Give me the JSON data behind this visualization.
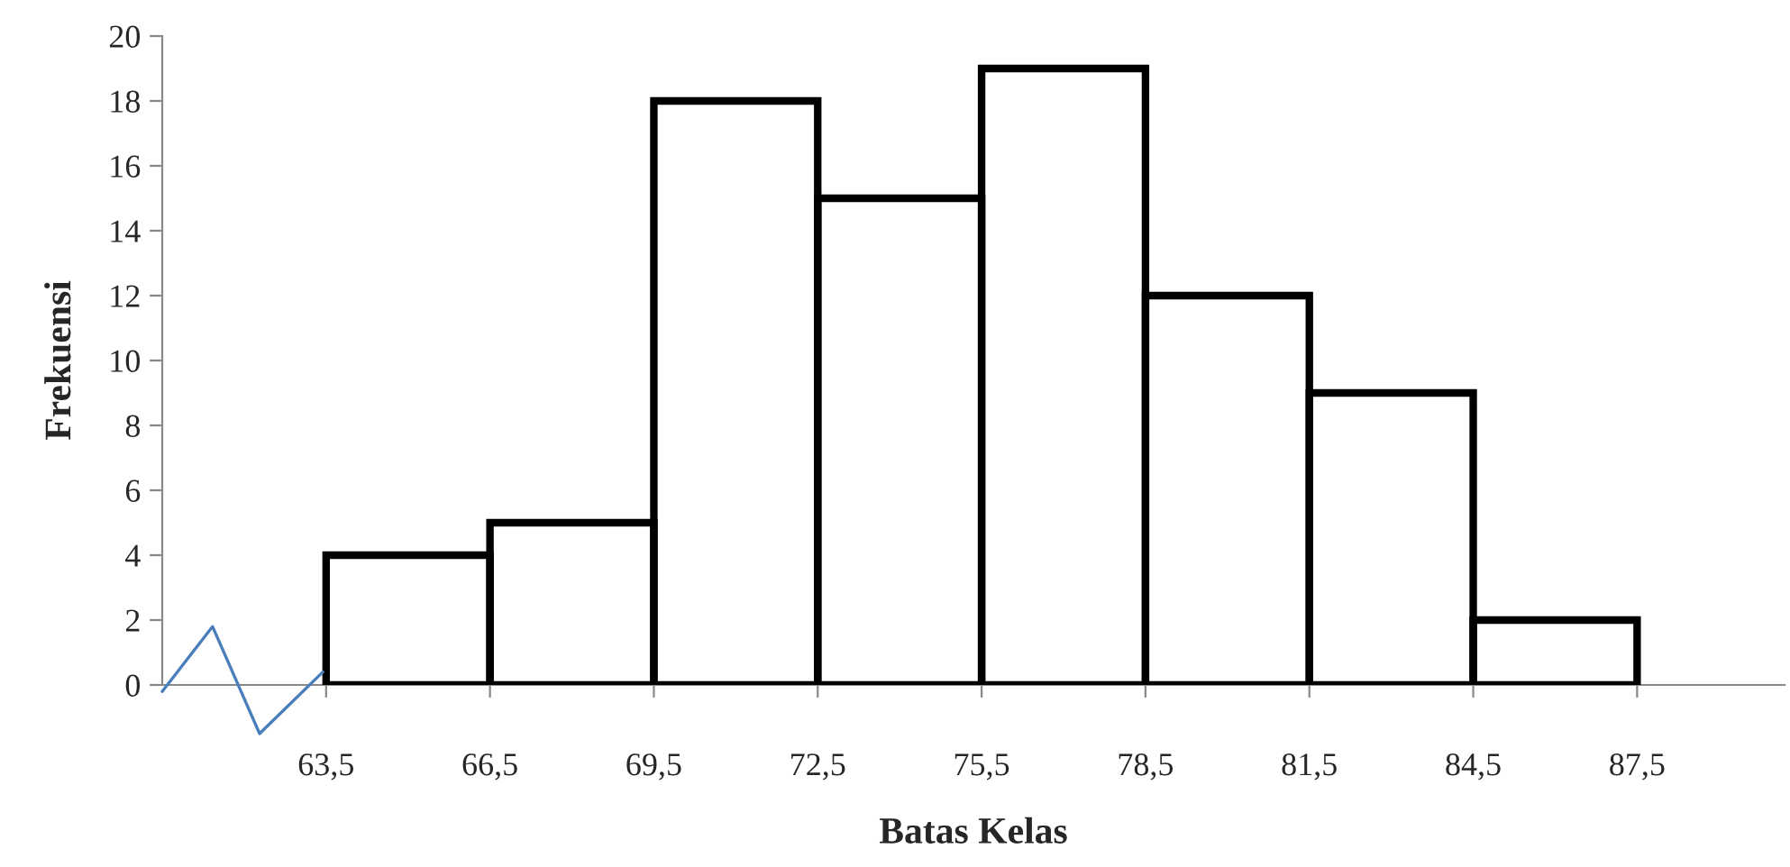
{
  "chart_data": {
    "type": "histogram",
    "xlabel": "Batas Kelas",
    "ylabel": "Frekuensi",
    "bins": [
      63.5,
      66.5,
      69.5,
      72.5,
      75.5,
      78.5,
      81.5,
      84.5,
      87.5
    ],
    "values": [
      4,
      5,
      18,
      15,
      19,
      12,
      9,
      2
    ],
    "color": "#000000",
    "xlim": [
      60.5,
      90.2
    ],
    "xticks": [
      {
        "value": 63.5,
        "label": "63,5"
      },
      {
        "value": 66.5,
        "label": "66,5"
      },
      {
        "value": 69.5,
        "label": "69,5"
      },
      {
        "value": 72.5,
        "label": "72,5"
      },
      {
        "value": 75.5,
        "label": "75,5"
      },
      {
        "value": 78.5,
        "label": "78,5"
      },
      {
        "value": 81.5,
        "label": "81,5"
      },
      {
        "value": 84.5,
        "label": "84,5"
      },
      {
        "value": 87.5,
        "label": "87,5"
      }
    ],
    "ylim": [
      0,
      20
    ],
    "yticks": [
      0,
      2,
      4,
      6,
      8,
      10,
      12,
      14,
      16,
      18,
      20
    ],
    "grid": false,
    "legend": false
  }
}
